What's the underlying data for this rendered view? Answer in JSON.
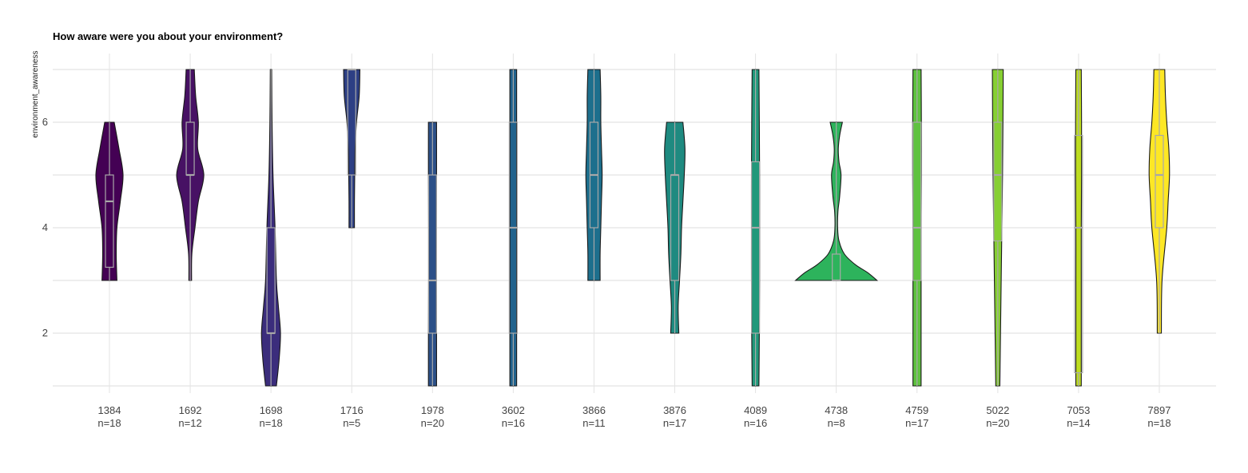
{
  "chart_data": {
    "type": "violin",
    "title": "How aware were you about your environment?",
    "xlabel": "",
    "ylabel": "environment_awareness",
    "ylim": [
      1,
      7
    ],
    "yticks": [
      2,
      4,
      6
    ],
    "grid": true,
    "legend": "none",
    "groups": [
      {
        "id": "1384",
        "n_label": "n=18",
        "color": "#440154",
        "min": 3,
        "q1": 3.25,
        "median": 4.5,
        "q3": 5,
        "max": 6,
        "density": [
          [
            3,
            0.55
          ],
          [
            3.5,
            0.5
          ],
          [
            4,
            0.55
          ],
          [
            4.5,
            0.8
          ],
          [
            5,
            1.0
          ],
          [
            5.5,
            0.7
          ],
          [
            6,
            0.35
          ]
        ]
      },
      {
        "id": "1692",
        "n_label": "n=12",
        "color": "#471164",
        "min": 3,
        "q1": 5,
        "median": 5,
        "q3": 6,
        "max": 7,
        "density": [
          [
            3,
            0.1
          ],
          [
            3.5,
            0.12
          ],
          [
            4,
            0.35
          ],
          [
            4.5,
            0.6
          ],
          [
            5,
            1.0
          ],
          [
            5.5,
            0.55
          ],
          [
            6,
            0.6
          ],
          [
            6.5,
            0.4
          ],
          [
            7,
            0.3
          ]
        ]
      },
      {
        "id": "1698",
        "n_label": "n=18",
        "color": "#3b2d7c",
        "min": 1,
        "q1": 2,
        "median": 2,
        "q3": 4,
        "max": 7,
        "density": [
          [
            1,
            0.4
          ],
          [
            1.5,
            0.6
          ],
          [
            2,
            0.7
          ],
          [
            2.5,
            0.55
          ],
          [
            3,
            0.4
          ],
          [
            4,
            0.3
          ],
          [
            5,
            0.15
          ],
          [
            6,
            0.08
          ],
          [
            7,
            0.05
          ]
        ]
      },
      {
        "id": "1716",
        "n_label": "n=5",
        "color": "#2d3f84",
        "min": 4,
        "q1": 5,
        "median": 7,
        "q3": 7,
        "max": 7,
        "density": [
          [
            4,
            0.2
          ],
          [
            4.5,
            0.2
          ],
          [
            5,
            0.22
          ],
          [
            5.5,
            0.25
          ],
          [
            6,
            0.35
          ],
          [
            6.5,
            0.55
          ],
          [
            7,
            0.6
          ]
        ]
      },
      {
        "id": "1978",
        "n_label": "n=20",
        "color": "#2c5088",
        "min": 1,
        "q1": 2,
        "median": 3,
        "q3": 5,
        "max": 6,
        "density": [
          [
            1,
            0.3
          ],
          [
            2,
            0.3
          ],
          [
            3,
            0.28
          ],
          [
            4,
            0.28
          ],
          [
            5,
            0.3
          ],
          [
            6,
            0.3
          ]
        ]
      },
      {
        "id": "3602",
        "n_label": "n=16",
        "color": "#21628c",
        "min": 1,
        "q1": 2,
        "median": 4,
        "q3": 6,
        "max": 7,
        "density": [
          [
            1,
            0.25
          ],
          [
            2,
            0.25
          ],
          [
            3,
            0.25
          ],
          [
            4,
            0.25
          ],
          [
            5,
            0.25
          ],
          [
            6,
            0.25
          ],
          [
            7,
            0.25
          ]
        ]
      },
      {
        "id": "3866",
        "n_label": "n=11",
        "color": "#1d6f8d",
        "min": 3,
        "q1": 4,
        "median": 5,
        "q3": 6,
        "max": 7,
        "density": [
          [
            3,
            0.45
          ],
          [
            3.5,
            0.45
          ],
          [
            4,
            0.5
          ],
          [
            4.5,
            0.55
          ],
          [
            5,
            0.6
          ],
          [
            5.5,
            0.55
          ],
          [
            6,
            0.5
          ],
          [
            6.5,
            0.5
          ],
          [
            7,
            0.45
          ]
        ]
      },
      {
        "id": "3876",
        "n_label": "n=17",
        "color": "#1e8a80",
        "min": 2,
        "q1": 3,
        "median": 5,
        "q3": 5,
        "max": 6,
        "density": [
          [
            2,
            0.3
          ],
          [
            2.5,
            0.25
          ],
          [
            3,
            0.35
          ],
          [
            3.5,
            0.45
          ],
          [
            4,
            0.5
          ],
          [
            4.5,
            0.6
          ],
          [
            5,
            0.7
          ],
          [
            5.5,
            0.75
          ],
          [
            6,
            0.6
          ]
        ]
      },
      {
        "id": "4089",
        "n_label": "n=16",
        "color": "#21987a",
        "min": 1,
        "q1": 2,
        "median": 4,
        "q3": 5.25,
        "max": 7,
        "density": [
          [
            1,
            0.25
          ],
          [
            2,
            0.28
          ],
          [
            3,
            0.3
          ],
          [
            4,
            0.3
          ],
          [
            5,
            0.3
          ],
          [
            6,
            0.28
          ],
          [
            7,
            0.25
          ]
        ]
      },
      {
        "id": "4738",
        "n_label": "n=8",
        "color": "#2db35c",
        "min": 3,
        "q1": 3,
        "median": 3,
        "q3": 3.5,
        "max": 6,
        "density": [
          [
            3,
            3.0
          ],
          [
            3.15,
            2.3
          ],
          [
            3.3,
            1.4
          ],
          [
            3.5,
            0.6
          ],
          [
            3.75,
            0.2
          ],
          [
            4,
            0.1
          ],
          [
            4.3,
            0.12
          ],
          [
            4.6,
            0.25
          ],
          [
            5,
            0.35
          ],
          [
            5.25,
            0.2
          ],
          [
            5.5,
            0.15
          ],
          [
            5.75,
            0.25
          ],
          [
            6,
            0.45
          ]
        ]
      },
      {
        "id": "4759",
        "n_label": "n=17",
        "color": "#5ec23f",
        "min": 1,
        "q1": 3,
        "median": 4,
        "q3": 6,
        "max": 7,
        "density": [
          [
            1,
            0.3
          ],
          [
            2,
            0.3
          ],
          [
            3,
            0.3
          ],
          [
            4,
            0.3
          ],
          [
            5,
            0.32
          ],
          [
            6,
            0.32
          ],
          [
            7,
            0.3
          ]
        ]
      },
      {
        "id": "5022",
        "n_label": "n=20",
        "color": "#86cf32",
        "min": 1,
        "q1": 3.75,
        "median": 5,
        "q3": 6,
        "max": 7,
        "density": [
          [
            1,
            0.15
          ],
          [
            2,
            0.2
          ],
          [
            3,
            0.25
          ],
          [
            4,
            0.3
          ],
          [
            5,
            0.35
          ],
          [
            6,
            0.38
          ],
          [
            7,
            0.4
          ]
        ]
      },
      {
        "id": "7053",
        "n_label": "n=14",
        "color": "#bddc20",
        "min": 1,
        "q1": 1.25,
        "median": 4,
        "q3": 5.75,
        "max": 7,
        "density": [
          [
            1,
            0.2
          ],
          [
            2,
            0.2
          ],
          [
            3,
            0.2
          ],
          [
            4,
            0.2
          ],
          [
            5,
            0.22
          ],
          [
            6,
            0.22
          ],
          [
            7,
            0.2
          ]
        ]
      },
      {
        "id": "7897",
        "n_label": "n=18",
        "color": "#fde725",
        "min": 2,
        "q1": 4,
        "median": 5,
        "q3": 5.75,
        "max": 7,
        "density": [
          [
            2,
            0.15
          ],
          [
            3,
            0.2
          ],
          [
            4,
            0.55
          ],
          [
            4.5,
            0.65
          ],
          [
            5,
            0.75
          ],
          [
            5.5,
            0.7
          ],
          [
            6,
            0.55
          ],
          [
            6.5,
            0.45
          ],
          [
            7,
            0.4
          ]
        ]
      }
    ]
  }
}
